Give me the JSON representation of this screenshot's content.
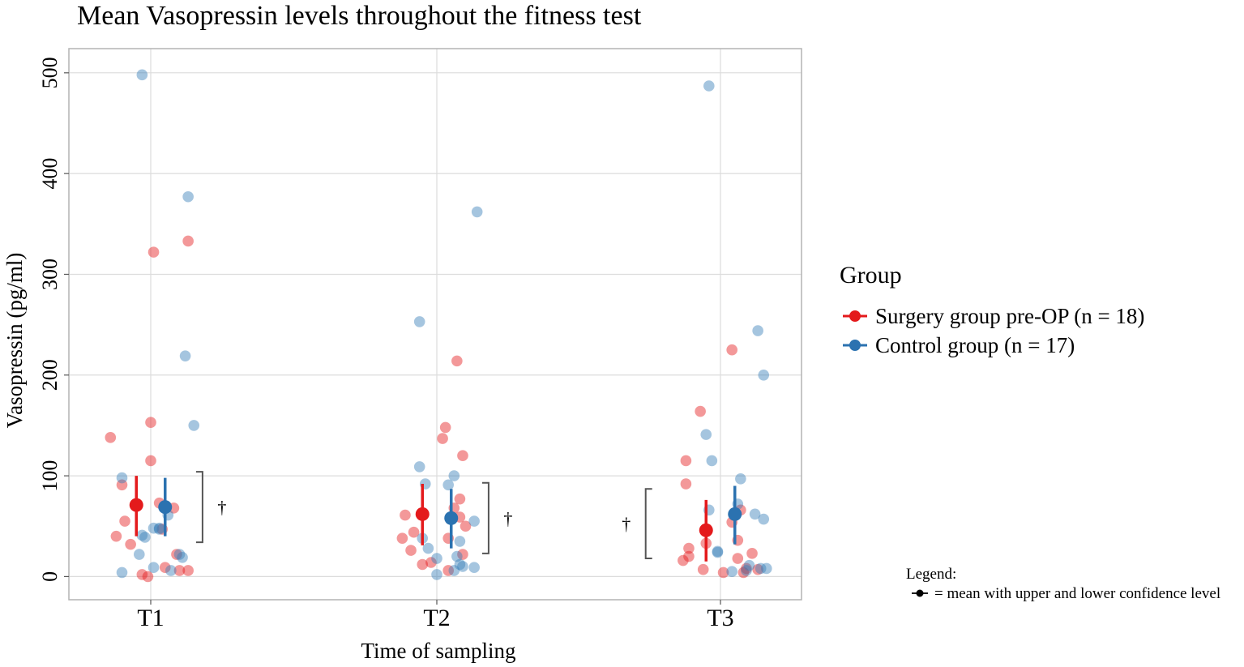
{
  "chart_data": {
    "type": "scatter",
    "title": "Mean Vasopressin levels throughout the fitness test",
    "xlabel": "Time of sampling",
    "ylabel": "Vasopressin (pg/ml)",
    "categories": [
      "T1",
      "T2",
      "T3"
    ],
    "ylim": [
      -23,
      524
    ],
    "yticks": [
      0,
      100,
      200,
      300,
      400,
      500
    ],
    "grid": true,
    "legend_title": "Group",
    "legend_position": "right",
    "note": {
      "title": "Legend:",
      "text": "= mean with upper and lower confidence level"
    },
    "series": [
      {
        "name": "Surgery group pre-OP (n = 18)",
        "color": "#e41a1c",
        "points": [
          {
            "x": "T1",
            "jitter": -0.14,
            "y": 138
          },
          {
            "x": "T1",
            "jitter": -0.12,
            "y": 40
          },
          {
            "x": "T1",
            "jitter": -0.1,
            "y": 91
          },
          {
            "x": "T1",
            "jitter": -0.09,
            "y": 55
          },
          {
            "x": "T1",
            "jitter": -0.07,
            "y": 32
          },
          {
            "x": "T1",
            "jitter": -0.03,
            "y": 2
          },
          {
            "x": "T1",
            "jitter": -0.01,
            "y": 0
          },
          {
            "x": "T1",
            "jitter": 0.0,
            "y": 153
          },
          {
            "x": "T1",
            "jitter": 0.0,
            "y": 115
          },
          {
            "x": "T1",
            "jitter": 0.01,
            "y": 322
          },
          {
            "x": "T1",
            "jitter": 0.03,
            "y": 73
          },
          {
            "x": "T1",
            "jitter": 0.04,
            "y": 47
          },
          {
            "x": "T1",
            "jitter": 0.05,
            "y": 9
          },
          {
            "x": "T1",
            "jitter": 0.08,
            "y": 68
          },
          {
            "x": "T1",
            "jitter": 0.09,
            "y": 22
          },
          {
            "x": "T1",
            "jitter": 0.1,
            "y": 6
          },
          {
            "x": "T1",
            "jitter": 0.13,
            "y": 6
          },
          {
            "x": "T1",
            "jitter": 0.13,
            "y": 333
          },
          {
            "x": "T2",
            "jitter": -0.12,
            "y": 38
          },
          {
            "x": "T2",
            "jitter": -0.11,
            "y": 61
          },
          {
            "x": "T2",
            "jitter": -0.09,
            "y": 26
          },
          {
            "x": "T2",
            "jitter": -0.08,
            "y": 44
          },
          {
            "x": "T2",
            "jitter": -0.05,
            "y": 12
          },
          {
            "x": "T2",
            "jitter": -0.02,
            "y": 14
          },
          {
            "x": "T2",
            "jitter": 0.02,
            "y": 137
          },
          {
            "x": "T2",
            "jitter": 0.03,
            "y": 148
          },
          {
            "x": "T2",
            "jitter": 0.04,
            "y": 38
          },
          {
            "x": "T2",
            "jitter": 0.04,
            "y": 6
          },
          {
            "x": "T2",
            "jitter": 0.06,
            "y": 68
          },
          {
            "x": "T2",
            "jitter": 0.07,
            "y": 214
          },
          {
            "x": "T2",
            "jitter": 0.08,
            "y": 59
          },
          {
            "x": "T2",
            "jitter": 0.08,
            "y": 77
          },
          {
            "x": "T2",
            "jitter": 0.09,
            "y": 120
          },
          {
            "x": "T2",
            "jitter": 0.09,
            "y": 22
          },
          {
            "x": "T2",
            "jitter": 0.1,
            "y": 50
          },
          {
            "x": "T3",
            "jitter": -0.13,
            "y": 16
          },
          {
            "x": "T3",
            "jitter": -0.12,
            "y": 115
          },
          {
            "x": "T3",
            "jitter": -0.12,
            "y": 92
          },
          {
            "x": "T3",
            "jitter": -0.11,
            "y": 20
          },
          {
            "x": "T3",
            "jitter": -0.11,
            "y": 28
          },
          {
            "x": "T3",
            "jitter": -0.07,
            "y": 164
          },
          {
            "x": "T3",
            "jitter": -0.05,
            "y": 33
          },
          {
            "x": "T3",
            "jitter": -0.06,
            "y": 7
          },
          {
            "x": "T3",
            "jitter": 0.01,
            "y": 4
          },
          {
            "x": "T3",
            "jitter": 0.04,
            "y": 225
          },
          {
            "x": "T3",
            "jitter": 0.04,
            "y": 54
          },
          {
            "x": "T3",
            "jitter": 0.06,
            "y": 36
          },
          {
            "x": "T3",
            "jitter": 0.06,
            "y": 18
          },
          {
            "x": "T3",
            "jitter": 0.07,
            "y": 66
          },
          {
            "x": "T3",
            "jitter": 0.08,
            "y": 4
          },
          {
            "x": "T3",
            "jitter": 0.09,
            "y": 8
          },
          {
            "x": "T3",
            "jitter": 0.11,
            "y": 23
          },
          {
            "x": "T3",
            "jitter": 0.13,
            "y": 7
          }
        ],
        "means": [
          {
            "x": "T1",
            "mean": 71,
            "lower": 40,
            "upper": 100
          },
          {
            "x": "T2",
            "mean": 62,
            "lower": 31,
            "upper": 92
          },
          {
            "x": "T3",
            "mean": 46,
            "lower": 15,
            "upper": 76
          }
        ]
      },
      {
        "name": "Control group (n = 17)",
        "color": "#377eb8",
        "points": [
          {
            "x": "T1",
            "jitter": -0.1,
            "y": 4
          },
          {
            "x": "T1",
            "jitter": -0.1,
            "y": 98
          },
          {
            "x": "T1",
            "jitter": -0.04,
            "y": 22
          },
          {
            "x": "T1",
            "jitter": -0.03,
            "y": 41
          },
          {
            "x": "T1",
            "jitter": -0.02,
            "y": 39
          },
          {
            "x": "T1",
            "jitter": -0.03,
            "y": 498
          },
          {
            "x": "T1",
            "jitter": 0.01,
            "y": 48
          },
          {
            "x": "T1",
            "jitter": 0.01,
            "y": 9
          },
          {
            "x": "T1",
            "jitter": 0.03,
            "y": 48
          },
          {
            "x": "T1",
            "jitter": 0.03,
            "y": 47
          },
          {
            "x": "T1",
            "jitter": 0.06,
            "y": 61
          },
          {
            "x": "T1",
            "jitter": 0.07,
            "y": 6
          },
          {
            "x": "T1",
            "jitter": 0.1,
            "y": 22
          },
          {
            "x": "T1",
            "jitter": 0.11,
            "y": 19
          },
          {
            "x": "T1",
            "jitter": 0.12,
            "y": 219
          },
          {
            "x": "T1",
            "jitter": 0.13,
            "y": 377
          },
          {
            "x": "T1",
            "jitter": 0.15,
            "y": 150
          },
          {
            "x": "T2",
            "jitter": -0.06,
            "y": 109
          },
          {
            "x": "T2",
            "jitter": -0.06,
            "y": 253
          },
          {
            "x": "T2",
            "jitter": -0.05,
            "y": 38
          },
          {
            "x": "T2",
            "jitter": -0.04,
            "y": 92
          },
          {
            "x": "T2",
            "jitter": -0.03,
            "y": 28
          },
          {
            "x": "T2",
            "jitter": 0.0,
            "y": 18
          },
          {
            "x": "T2",
            "jitter": 0.0,
            "y": 2
          },
          {
            "x": "T2",
            "jitter": 0.04,
            "y": 91
          },
          {
            "x": "T2",
            "jitter": 0.06,
            "y": 100
          },
          {
            "x": "T2",
            "jitter": 0.06,
            "y": 6
          },
          {
            "x": "T2",
            "jitter": 0.07,
            "y": 20
          },
          {
            "x": "T2",
            "jitter": 0.08,
            "y": 35
          },
          {
            "x": "T2",
            "jitter": 0.08,
            "y": 12
          },
          {
            "x": "T2",
            "jitter": 0.09,
            "y": 10
          },
          {
            "x": "T2",
            "jitter": 0.13,
            "y": 55
          },
          {
            "x": "T2",
            "jitter": 0.13,
            "y": 9
          },
          {
            "x": "T2",
            "jitter": 0.14,
            "y": 362
          },
          {
            "x": "T3",
            "jitter": -0.05,
            "y": 141
          },
          {
            "x": "T3",
            "jitter": -0.04,
            "y": 66
          },
          {
            "x": "T3",
            "jitter": -0.04,
            "y": 487
          },
          {
            "x": "T3",
            "jitter": -0.03,
            "y": 115
          },
          {
            "x": "T3",
            "jitter": -0.01,
            "y": 24
          },
          {
            "x": "T3",
            "jitter": -0.01,
            "y": 25
          },
          {
            "x": "T3",
            "jitter": 0.04,
            "y": 5
          },
          {
            "x": "T3",
            "jitter": 0.06,
            "y": 72
          },
          {
            "x": "T3",
            "jitter": 0.07,
            "y": 97
          },
          {
            "x": "T3",
            "jitter": 0.09,
            "y": 6
          },
          {
            "x": "T3",
            "jitter": 0.1,
            "y": 11
          },
          {
            "x": "T3",
            "jitter": 0.12,
            "y": 62
          },
          {
            "x": "T3",
            "jitter": 0.13,
            "y": 244
          },
          {
            "x": "T3",
            "jitter": 0.14,
            "y": 8
          },
          {
            "x": "T3",
            "jitter": 0.15,
            "y": 200
          },
          {
            "x": "T3",
            "jitter": 0.15,
            "y": 57
          },
          {
            "x": "T3",
            "jitter": 0.16,
            "y": 8
          }
        ],
        "means": [
          {
            "x": "T1",
            "mean": 69,
            "lower": 40,
            "upper": 98
          },
          {
            "x": "T2",
            "mean": 58,
            "lower": 28,
            "upper": 87
          },
          {
            "x": "T3",
            "mean": 62,
            "lower": 32,
            "upper": 90
          }
        ]
      }
    ],
    "annotations": [
      {
        "x": "T1",
        "side": "right",
        "label": "†",
        "lower": 34,
        "upper": 104
      },
      {
        "x": "T2",
        "side": "right",
        "label": "†",
        "lower": 23,
        "upper": 93
      },
      {
        "x": "T3",
        "side": "left",
        "label": "†",
        "lower": 18,
        "upper": 87
      }
    ]
  }
}
